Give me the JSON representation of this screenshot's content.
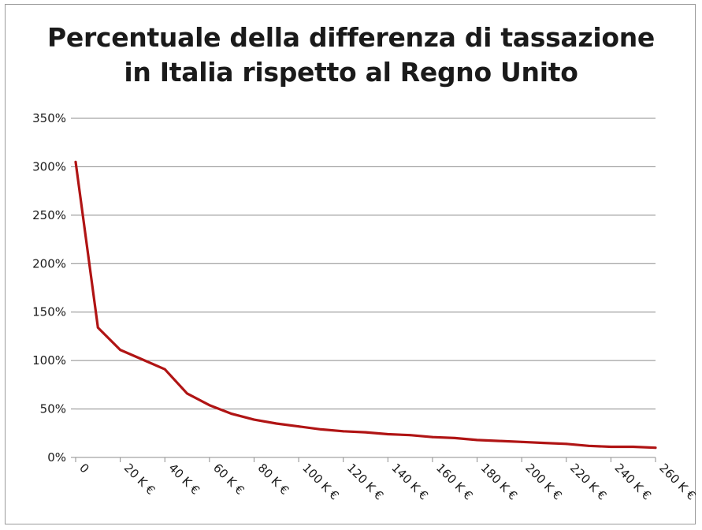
{
  "chart_data": {
    "type": "line",
    "title_line1": "Percentuale della differenza di tassazione",
    "title_line2": "in Italia rispetto al Regno Unito",
    "xlabel": "",
    "ylabel": "",
    "x_tick_labels": [
      "0",
      "20 K €",
      "40 K €",
      "60 K €",
      "80 K €",
      "100 K €",
      "120 K €",
      "140 K €",
      "160 K €",
      "180 K €",
      "200 K €",
      "220 K €",
      "240 K €",
      "260 K €"
    ],
    "y_tick_labels": [
      "0%",
      "50%",
      "100%",
      "150%",
      "200%",
      "250%",
      "300%",
      "350%"
    ],
    "xlim": [
      0,
      260
    ],
    "ylim": [
      0,
      350
    ],
    "grid": true,
    "series": [
      {
        "color": "#b01414",
        "x": [
          0,
          10,
          20,
          30,
          40,
          50,
          60,
          70,
          80,
          90,
          100,
          110,
          120,
          130,
          140,
          150,
          160,
          170,
          180,
          190,
          200,
          210,
          220,
          230,
          240,
          250,
          260
        ],
        "y": [
          305,
          134,
          111,
          101,
          91,
          66,
          54,
          45,
          39,
          35,
          32,
          29,
          27,
          26,
          24,
          23,
          21,
          20,
          18,
          17,
          16,
          15,
          14,
          12,
          11,
          11,
          10
        ]
      }
    ]
  }
}
